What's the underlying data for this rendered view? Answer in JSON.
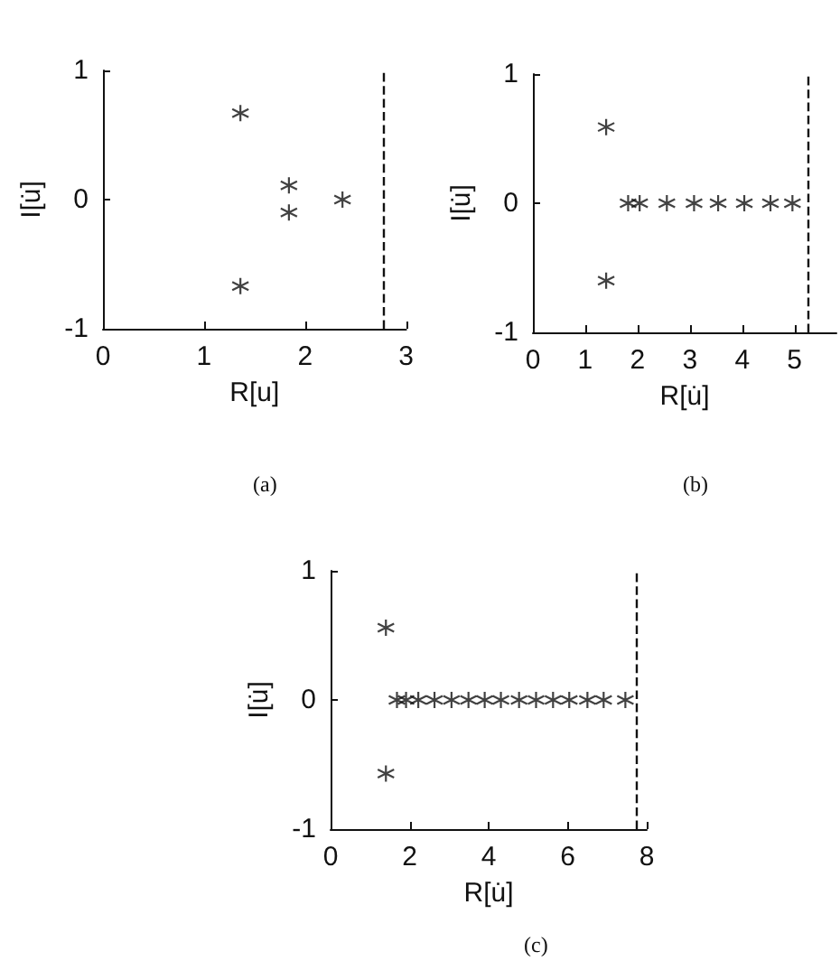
{
  "chart_data": [
    {
      "type": "scatter",
      "xlabel": "R[u]",
      "ylabel": "I[u̇]",
      "annotations": [
        "(a)"
      ],
      "x": [
        1.36,
        1.36,
        1.84,
        1.84,
        2.37
      ],
      "values": [
        0.67,
        -0.67,
        0.11,
        -0.1,
        0
      ],
      "color": "#111111",
      "marker": "cross",
      "xlim": [
        0,
        3
      ],
      "xticks": [
        0,
        1,
        2,
        3
      ],
      "ylim": [
        -1,
        1
      ],
      "yticks": [
        -1,
        0,
        1
      ],
      "ref_lines": [
        {
          "axis": "x",
          "value": 2.77,
          "line_style": "dashed",
          "color": "#111111"
        }
      ]
    },
    {
      "type": "scatter",
      "xlabel": "R[u̇]",
      "ylabel": "I[u̇]",
      "annotations": [
        "(b)"
      ],
      "x": [
        1.4,
        1.4,
        1.82,
        2.04,
        2.56,
        3.08,
        3.54,
        4.04,
        4.54,
        4.96
      ],
      "values": [
        0.59,
        -0.6,
        0,
        0,
        0,
        0,
        0,
        0,
        0,
        0
      ],
      "color": "#111111",
      "marker": "cross",
      "xlim": [
        0,
        5.8
      ],
      "xticks": [
        0,
        1,
        2,
        3,
        4,
        5
      ],
      "ylim": [
        -1,
        1
      ],
      "yticks": [
        -1,
        0,
        1
      ],
      "ref_lines": [
        {
          "axis": "x",
          "value": 5.25,
          "line_style": "dashed",
          "color": "#111111"
        }
      ]
    },
    {
      "type": "scatter",
      "xlabel": "R[u̇]",
      "ylabel": "I[u̇]",
      "annotations": [
        "(c)"
      ],
      "x": [
        1.4,
        1.4,
        1.68,
        1.91,
        2.22,
        2.63,
        3.06,
        3.49,
        3.9,
        4.31,
        4.77,
        5.2,
        5.63,
        6.04,
        6.5,
        6.91,
        7.46
      ],
      "values": [
        0.56,
        -0.57,
        0,
        0,
        0,
        0,
        0,
        0,
        0,
        0,
        0,
        0,
        0,
        0,
        0,
        0,
        0
      ],
      "color": "#111111",
      "marker": "cross",
      "xlim": [
        0,
        8
      ],
      "xticks": [
        0,
        2,
        4,
        6,
        8
      ],
      "ylim": [
        -1,
        1
      ],
      "yticks": [
        -1,
        0,
        1
      ],
      "ref_lines": [
        {
          "axis": "x",
          "value": 7.75,
          "line_style": "dashed",
          "color": "#111111"
        }
      ]
    }
  ]
}
